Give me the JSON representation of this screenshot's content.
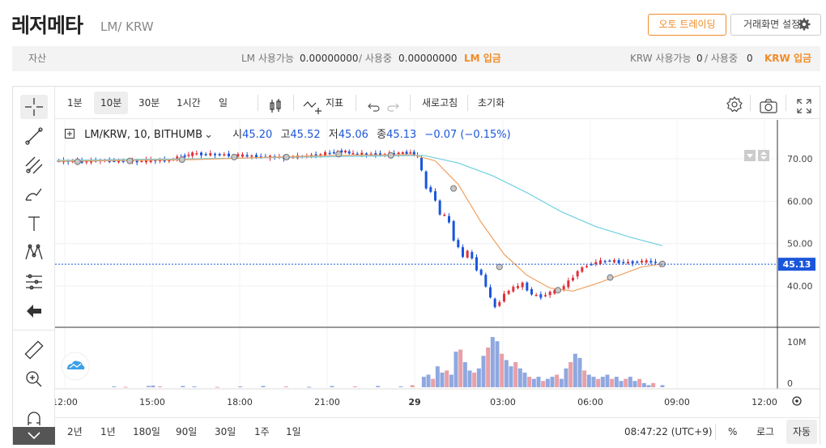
{
  "header": {
    "coin_name": "레저메타",
    "pair": "LM/ KRW",
    "auto_trade_label": "오토 트레이딩",
    "settings_label": "거래화면 설정"
  },
  "asset_bar": {
    "label": "자산",
    "lm_avail_label": "LM 사용가능",
    "lm_avail": "0.00000000",
    "lm_used_label": "/ 사용중",
    "lm_used": "0.00000000",
    "lm_deposit": "LM 입금",
    "krw_avail_label": "KRW 사용가능",
    "krw_avail": "0",
    "krw_used_label": "/ 사용중",
    "krw_used": "0",
    "krw_deposit": "KRW 입금"
  },
  "toolbar": {
    "intervals": [
      "1분",
      "10분",
      "30분",
      "1시간",
      "일"
    ],
    "selected_interval": "10분",
    "indicator_label": "지표",
    "refresh_label": "새로고침",
    "reset_label": "초기화"
  },
  "legend": {
    "symbol": "LM/KRW, 10, BITHUMB",
    "open_label": "시",
    "open": "45.20",
    "high_label": "고",
    "high": "45.52",
    "low_label": "저",
    "low": "45.06",
    "close_label": "종",
    "close": "45.13",
    "change": "−0.07 (−0.15%)"
  },
  "bottom_bar": {
    "ranges": [
      "2년",
      "1년",
      "180일",
      "90일",
      "30일",
      "1주",
      "1일"
    ],
    "time": "08:47:22 (UTC+9)",
    "percent_label": "%",
    "log_label": "로그",
    "auto_label": "자동"
  },
  "colors": {
    "up": "#e0303a",
    "down": "#1a56db",
    "ma_short": "#f0a060",
    "ma_long": "#6fd0e0",
    "accent": "#f08c28"
  },
  "chart_data": {
    "type": "candlestick",
    "x_ticks": [
      "12:00",
      "15:00",
      "18:00",
      "21:00",
      "29",
      "03:00",
      "06:00",
      "09:00",
      "12:00"
    ],
    "y_ticks": [
      "70.00",
      "60.00",
      "50.00",
      "40.00"
    ],
    "y_range": [
      30,
      80
    ],
    "last_price": "45.13",
    "volume_ticks": [
      "10M",
      "0"
    ],
    "price_path": [
      [
        0,
        69.5
      ],
      [
        10,
        69.3
      ],
      [
        20,
        69.6
      ],
      [
        30,
        69.4
      ],
      [
        40,
        69.5
      ],
      [
        50,
        69.7
      ],
      [
        55,
        70.5
      ],
      [
        60,
        71.2
      ],
      [
        70,
        71.0
      ],
      [
        80,
        70.8
      ],
      [
        90,
        70.5
      ],
      [
        100,
        70.3
      ],
      [
        110,
        70.6
      ],
      [
        120,
        71.4
      ],
      [
        125,
        71.8
      ],
      [
        130,
        71.2
      ],
      [
        140,
        71.0
      ],
      [
        150,
        71.3
      ],
      [
        155,
        71.5
      ],
      [
        158,
        70.5
      ],
      [
        160,
        67.0
      ],
      [
        162,
        63.0
      ],
      [
        164,
        62.5
      ],
      [
        166,
        60.0
      ],
      [
        168,
        57.0
      ],
      [
        170,
        56.5
      ],
      [
        172,
        55.0
      ],
      [
        174,
        51.0
      ],
      [
        176,
        49.0
      ],
      [
        178,
        47.0
      ],
      [
        180,
        48.0
      ],
      [
        182,
        46.5
      ],
      [
        184,
        44.0
      ],
      [
        186,
        42.5
      ],
      [
        188,
        40.0
      ],
      [
        190,
        37.0
      ],
      [
        192,
        35.0
      ],
      [
        194,
        36.5
      ],
      [
        196,
        38.0
      ],
      [
        198,
        39.0
      ],
      [
        200,
        39.5
      ],
      [
        204,
        40.5
      ],
      [
        208,
        38.0
      ],
      [
        212,
        37.5
      ],
      [
        216,
        38.5
      ],
      [
        220,
        39.0
      ],
      [
        224,
        41.0
      ],
      [
        228,
        43.5
      ],
      [
        232,
        45.0
      ],
      [
        236,
        45.5
      ],
      [
        240,
        46.0
      ],
      [
        244,
        45.8
      ],
      [
        248,
        45.5
      ],
      [
        252,
        45.6
      ],
      [
        256,
        45.8
      ],
      [
        260,
        45.7
      ],
      [
        264,
        45.13
      ]
    ],
    "ma_short": [
      [
        0,
        69.4
      ],
      [
        60,
        69.8
      ],
      [
        120,
        70.8
      ],
      [
        155,
        71.0
      ],
      [
        165,
        69.5
      ],
      [
        175,
        64.0
      ],
      [
        185,
        55.0
      ],
      [
        195,
        47.5
      ],
      [
        205,
        42.5
      ],
      [
        215,
        39.5
      ],
      [
        225,
        38.8
      ],
      [
        235,
        40.5
      ],
      [
        245,
        42.5
      ],
      [
        255,
        44.5
      ],
      [
        264,
        45.2
      ]
    ],
    "ma_long": [
      [
        0,
        69.6
      ],
      [
        60,
        70.0
      ],
      [
        120,
        70.5
      ],
      [
        160,
        70.8
      ],
      [
        175,
        69.0
      ],
      [
        190,
        66.0
      ],
      [
        205,
        62.0
      ],
      [
        220,
        57.5
      ],
      [
        235,
        54.0
      ],
      [
        250,
        51.5
      ],
      [
        264,
        49.5
      ]
    ],
    "volume": [
      [
        25,
        0.2
      ],
      [
        30,
        0.1
      ],
      [
        40,
        0.3
      ],
      [
        42,
        0.4
      ],
      [
        45,
        0.2
      ],
      [
        55,
        0.3
      ],
      [
        60,
        0.2
      ],
      [
        70,
        0.1
      ],
      [
        80,
        0.2
      ],
      [
        90,
        0.3
      ],
      [
        100,
        0.2
      ],
      [
        110,
        0.1
      ],
      [
        120,
        0.3
      ],
      [
        130,
        0.2
      ],
      [
        140,
        0.3
      ],
      [
        150,
        0.2
      ],
      [
        155,
        0.5
      ],
      [
        160,
        2.5
      ],
      [
        162,
        3.0
      ],
      [
        164,
        2.0
      ],
      [
        166,
        5.0
      ],
      [
        168,
        3.5
      ],
      [
        170,
        4.0
      ],
      [
        172,
        3.0
      ],
      [
        174,
        8.5
      ],
      [
        176,
        9.0
      ],
      [
        178,
        6.0
      ],
      [
        180,
        4.0
      ],
      [
        182,
        3.5
      ],
      [
        184,
        4.5
      ],
      [
        186,
        7.5
      ],
      [
        188,
        9.5
      ],
      [
        190,
        12.0
      ],
      [
        192,
        11.0
      ],
      [
        194,
        8.0
      ],
      [
        196,
        6.5
      ],
      [
        198,
        5.0
      ],
      [
        200,
        6.0
      ],
      [
        202,
        4.5
      ],
      [
        204,
        3.5
      ],
      [
        206,
        2.5
      ],
      [
        208,
        2.0
      ],
      [
        210,
        2.5
      ],
      [
        212,
        1.5
      ],
      [
        214,
        2.0
      ],
      [
        216,
        2.5
      ],
      [
        218,
        3.0
      ],
      [
        220,
        2.0
      ],
      [
        222,
        4.5
      ],
      [
        224,
        6.0
      ],
      [
        226,
        8.0
      ],
      [
        228,
        7.0
      ],
      [
        230,
        4.0
      ],
      [
        232,
        3.0
      ],
      [
        234,
        2.5
      ],
      [
        236,
        2.0
      ],
      [
        238,
        2.5
      ],
      [
        240,
        3.0
      ],
      [
        242,
        2.0
      ],
      [
        244,
        2.5
      ],
      [
        246,
        1.5
      ],
      [
        248,
        2.0
      ],
      [
        250,
        2.5
      ],
      [
        252,
        1.5
      ],
      [
        254,
        2.0
      ],
      [
        256,
        1.0
      ],
      [
        258,
        0.5
      ],
      [
        260,
        1.0
      ],
      [
        264,
        0.5
      ]
    ]
  }
}
